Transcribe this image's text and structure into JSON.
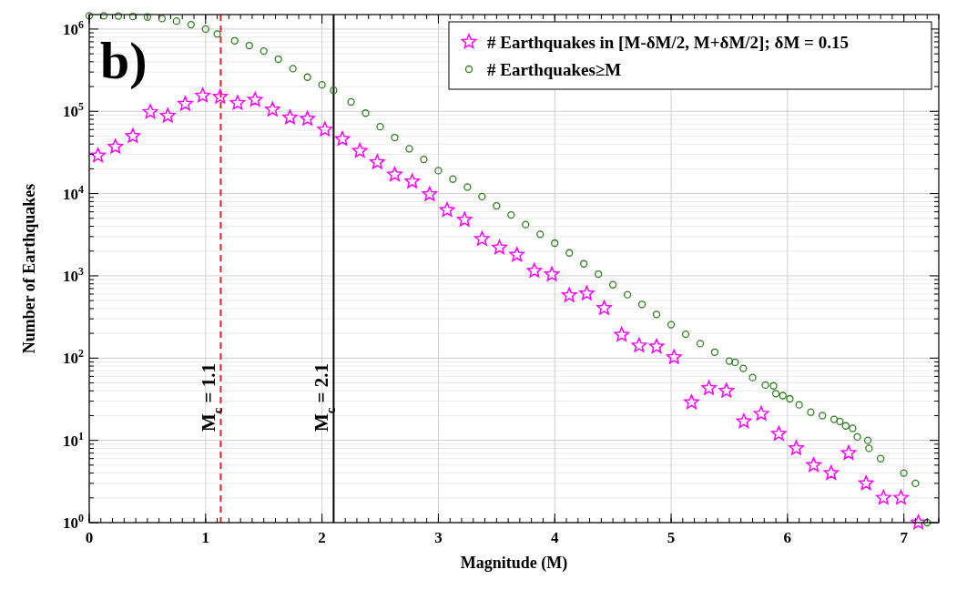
{
  "chart_data": {
    "type": "scatter",
    "xlabel": "Magnitude (M)",
    "ylabel": "Number of Earthquakes",
    "log": "y",
    "grid": true,
    "legend": "top right",
    "xlim": [
      0,
      7.3
    ],
    "xticks": [
      0,
      1,
      2,
      3,
      4,
      5,
      6,
      7
    ],
    "ylim": [
      1,
      1500000
    ],
    "yticks": [
      {
        "value": 1,
        "label": "10$^{0}$"
      },
      {
        "value": 10,
        "label": "10$^{1}$"
      },
      {
        "value": 100,
        "label": "10$^{2}$"
      },
      {
        "value": 1000,
        "label": "10$^{3}$"
      },
      {
        "value": 10000,
        "label": "10$^{4}$"
      },
      {
        "value": 100000,
        "label": "10$^{5}$"
      },
      {
        "value": 1000000,
        "label": "10$^{6}$"
      }
    ],
    "annotations": [
      "b)"
    ],
    "ref_lines": [
      {
        "axis": "x",
        "value": 1.13,
        "label": "M$_{c}$ = 1.1",
        "color": "#e8231f",
        "line_style": "dashed"
      },
      {
        "axis": "x",
        "value": 2.1,
        "label": "M$_{c}$ = 2.1",
        "color": "#000000",
        "line_style": "solid"
      }
    ],
    "series": [
      {
        "name": "# Earthquakes in [M-δM/2, M+δM/2]; δM = 0.15",
        "color": "#ff00ff",
        "marker": "star",
        "x": [
          0.075,
          0.225,
          0.375,
          0.525,
          0.675,
          0.825,
          0.975,
          1.125,
          1.275,
          1.425,
          1.575,
          1.725,
          1.875,
          2.025,
          2.175,
          2.325,
          2.475,
          2.625,
          2.775,
          2.925,
          3.075,
          3.225,
          3.375,
          3.525,
          3.675,
          3.825,
          3.975,
          4.125,
          4.275,
          4.425,
          4.575,
          4.725,
          4.875,
          5.025,
          5.175,
          5.325,
          5.475,
          5.625,
          5.775,
          5.925,
          6.075,
          6.225,
          6.375,
          6.525,
          6.675,
          6.825,
          6.975,
          7.125
        ],
        "values": [
          29000,
          37000,
          50000,
          98000,
          88000,
          123000,
          155000,
          150000,
          126000,
          138000,
          105000,
          84000,
          81000,
          60000,
          46000,
          33000,
          24000,
          17000,
          14000,
          9800,
          6300,
          4800,
          2800,
          2200,
          1800,
          1150,
          1040,
          580,
          610,
          405,
          192,
          142,
          138,
          102,
          29,
          43,
          40,
          17,
          21,
          12,
          8,
          5,
          4,
          7,
          3,
          2,
          2,
          1
        ]
      },
      {
        "name": "# Earthquakes≥M",
        "color": "#2e7d1e",
        "marker": "circle",
        "x": [
          0,
          0.125,
          0.25,
          0.375,
          0.5,
          0.625,
          0.75,
          0.875,
          1.0,
          1.1,
          1.25,
          1.375,
          1.5,
          1.625,
          1.75,
          1.875,
          2.0,
          2.1,
          2.25,
          2.375,
          2.5,
          2.625,
          2.75,
          2.875,
          3.0,
          3.125,
          3.25,
          3.375,
          3.5,
          3.625,
          3.75,
          3.875,
          4.0,
          4.125,
          4.25,
          4.375,
          4.5,
          4.625,
          4.75,
          4.875,
          5.0,
          5.125,
          5.25,
          5.375,
          5.5,
          5.55,
          5.62,
          5.7,
          5.81,
          5.88,
          5.9,
          5.96,
          6.02,
          6.1,
          6.2,
          6.3,
          6.4,
          6.45,
          6.5,
          6.56,
          6.6,
          6.69,
          6.7,
          6.8,
          7.0,
          7.1,
          7.2
        ],
        "values": [
          1450000,
          1450000,
          1440000,
          1420000,
          1400000,
          1340000,
          1250000,
          1130000,
          1000000,
          870000,
          720000,
          630000,
          540000,
          430000,
          330000,
          260000,
          210000,
          180000,
          130000,
          95000,
          65000,
          48000,
          35000,
          26000,
          19000,
          15000,
          12000,
          9200,
          7100,
          5500,
          4200,
          3200,
          2500,
          1900,
          1400,
          1050,
          780,
          590,
          450,
          340,
          255,
          195,
          150,
          118,
          92,
          89,
          75,
          58,
          47,
          46,
          37,
          35,
          32,
          27,
          22,
          20,
          18,
          17,
          15,
          14,
          11,
          10,
          8,
          6,
          4,
          3,
          1
        ]
      }
    ]
  }
}
